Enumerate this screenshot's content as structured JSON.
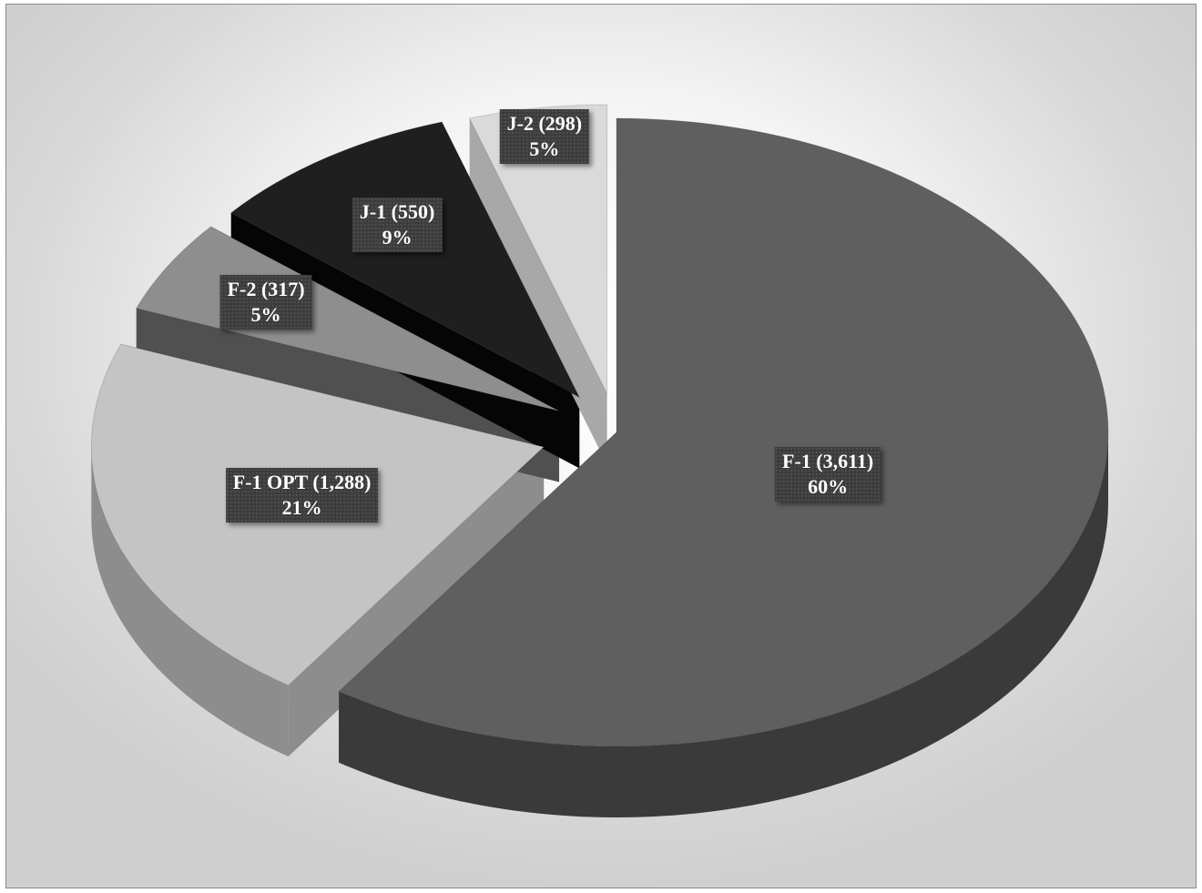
{
  "chart_data": {
    "type": "pie",
    "style": "3d-exploded",
    "title": "",
    "legend": "none",
    "slices": [
      {
        "label": "F-1",
        "value": 3611,
        "percent": "60%",
        "count_text": "(3,611)",
        "color": "#5f5f5f",
        "side_color": "#3a3a3a"
      },
      {
        "label": "F-1 OPT",
        "value": 1288,
        "percent": "21%",
        "count_text": "(1,288)",
        "color": "#c4c4c4",
        "side_color": "#8d8d8d"
      },
      {
        "label": "F-2",
        "value": 317,
        "percent": "5%",
        "count_text": "(317)",
        "color": "#8e8e8e",
        "side_color": "#505050"
      },
      {
        "label": "J-1",
        "value": 550,
        "percent": "9%",
        "count_text": "(550)",
        "color": "#1f1f1f",
        "side_color": "#050505"
      },
      {
        "label": "J-2",
        "value": 298,
        "percent": "5%",
        "count_text": "(298)",
        "color": "#dadada",
        "side_color": "#a8a8a8"
      }
    ]
  }
}
